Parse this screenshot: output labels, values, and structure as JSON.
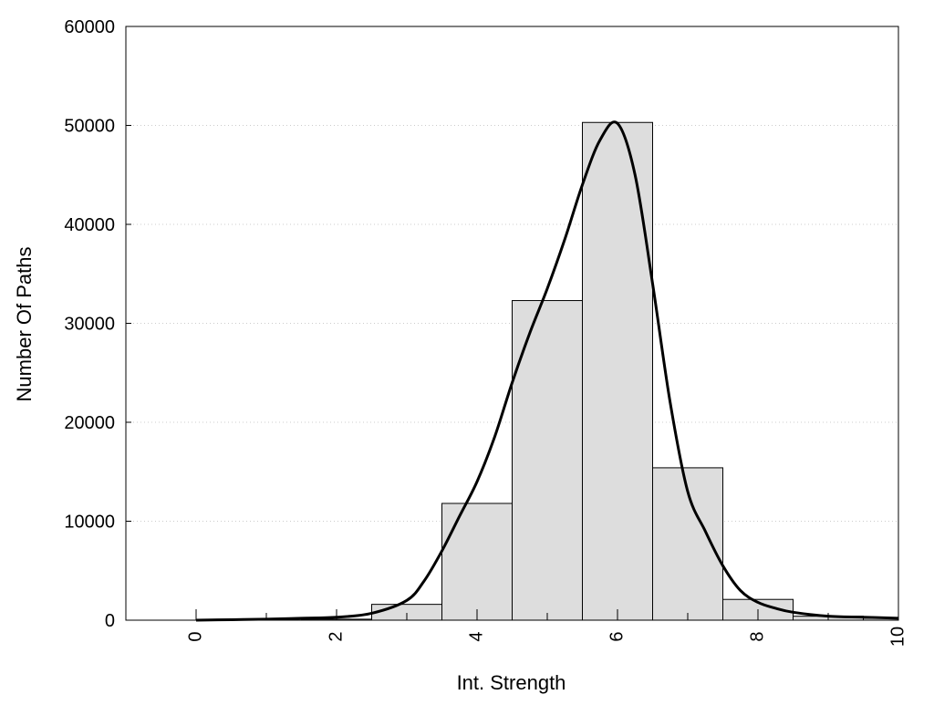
{
  "chart_data": {
    "type": "bar",
    "title": "",
    "xlabel": "Int. Strength",
    "ylabel": "Number Of Paths",
    "xlim": [
      -1,
      10
    ],
    "ylim": [
      0,
      60000
    ],
    "grid": "horizontal-dotted",
    "x_ticks": [
      "0",
      "2",
      "4",
      "6",
      "8",
      "10"
    ],
    "y_ticks": [
      "0",
      "10000",
      "20000",
      "30000",
      "40000",
      "50000",
      "60000"
    ],
    "bin_width": 1,
    "bars": [
      {
        "x": 0,
        "value": 0
      },
      {
        "x": 1,
        "value": 0
      },
      {
        "x": 2,
        "value": 100
      },
      {
        "x": 3,
        "value": 1600
      },
      {
        "x": 4,
        "value": 11800
      },
      {
        "x": 5,
        "value": 32300
      },
      {
        "x": 6,
        "value": 50300
      },
      {
        "x": 7,
        "value": 15400
      },
      {
        "x": 8,
        "value": 2100
      },
      {
        "x": 9,
        "value": 400
      },
      {
        "x": 10,
        "value": 200
      }
    ],
    "curve": {
      "x": [
        0,
        0.5,
        1,
        1.5,
        2,
        2.5,
        3,
        3.25,
        3.5,
        3.75,
        4,
        4.25,
        4.5,
        4.75,
        5,
        5.25,
        5.5,
        5.75,
        6,
        6.25,
        6.5,
        6.75,
        7,
        7.25,
        7.5,
        7.75,
        8,
        8.25,
        8.5,
        9,
        9.5,
        10
      ],
      "y": [
        0,
        50,
        100,
        200,
        300,
        700,
        2000,
        4000,
        7000,
        10500,
        14000,
        18500,
        24000,
        29000,
        33500,
        38500,
        44000,
        48500,
        50200,
        45000,
        34000,
        22000,
        13000,
        9000,
        5500,
        3000,
        1800,
        1200,
        800,
        400,
        300,
        200
      ]
    },
    "colors": {
      "bar_fill": "#dddddd",
      "bar_stroke": "#000000",
      "curve": "#000000",
      "grid": "#cccccc"
    }
  }
}
